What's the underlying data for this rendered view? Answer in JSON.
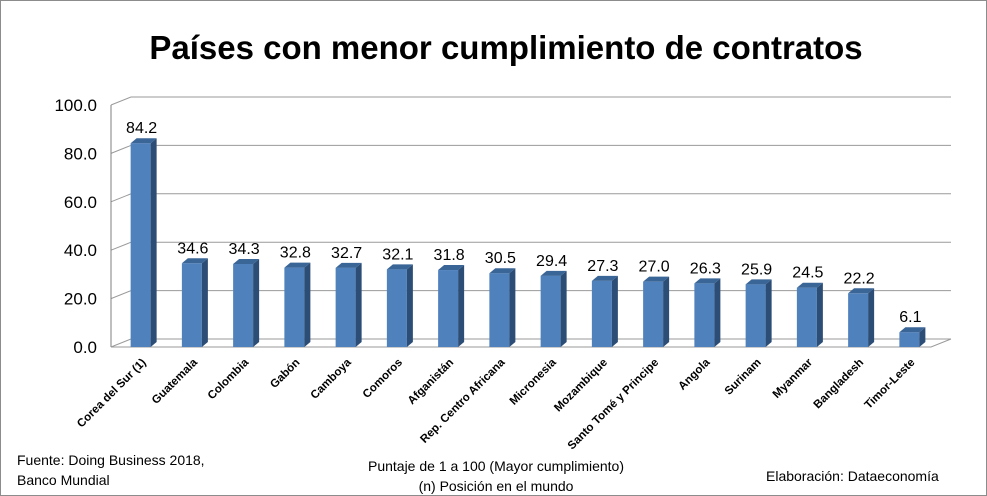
{
  "chart_data": {
    "type": "bar",
    "title": "Países con menor cumplimiento de contratos",
    "categories": [
      "Corea del Sur (1)",
      "Guatemala",
      "Colombia",
      "Gabón",
      "Camboya",
      "Comoros",
      "Afganistán",
      "Rep. Centro Africana",
      "Micronesia",
      "Mozambique",
      "Santo Tomé y Principe",
      "Angola",
      "Surinam",
      "Myanmar",
      "Bangladesh",
      "Timor-Leste"
    ],
    "values": [
      84.2,
      34.6,
      34.3,
      32.8,
      32.7,
      32.1,
      31.8,
      30.5,
      29.4,
      27.3,
      27.0,
      26.3,
      25.9,
      24.5,
      22.2,
      6.1
    ],
    "ylim": [
      0,
      100
    ],
    "yticks": [
      0,
      20,
      40,
      60,
      80,
      100
    ],
    "grid": true,
    "bar_color": "#4f81bd",
    "bar_side_color": "#2c4d75",
    "bar_top_color": "#3a6597"
  },
  "footer": {
    "source_line1": "Fuente: Doing Business 2018,",
    "source_line2": "Banco Mundial",
    "scale_note": "Puntaje de 1 a 100 (Mayor cumplimiento)",
    "rank_note": "(n) Posición en el mundo",
    "credit": "Elaboración: Dataeconomía"
  }
}
